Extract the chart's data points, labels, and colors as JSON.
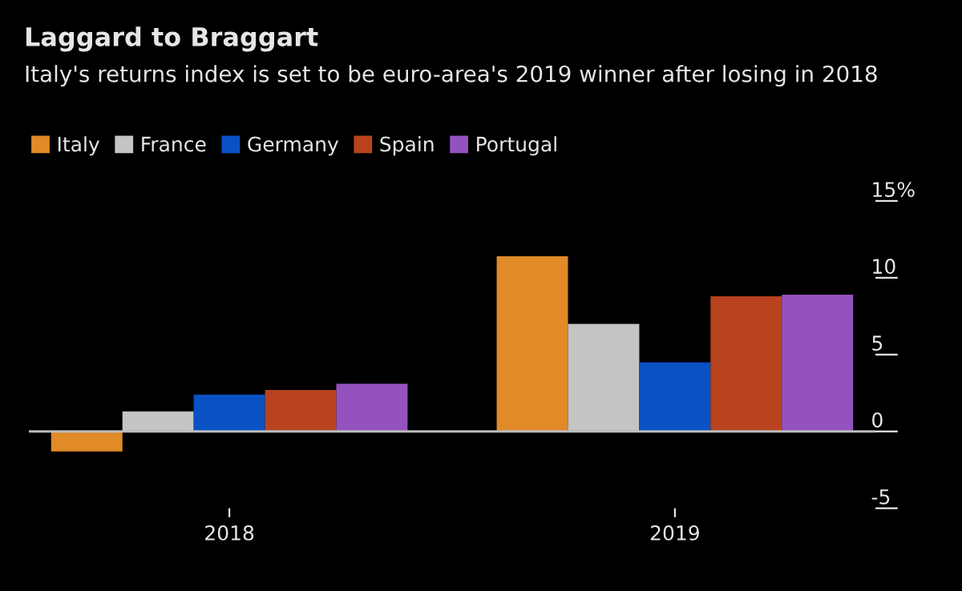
{
  "chart_data": {
    "type": "bar",
    "title": "Laggard to Braggart",
    "subtitle": "Italy's returns index is set to be euro-area's 2019 winner after losing in 2018",
    "categories": [
      "2018",
      "2019"
    ],
    "series": [
      {
        "name": "Italy",
        "color": "#e08a28",
        "values": [
          -1.3,
          11.4
        ]
      },
      {
        "name": "France",
        "color": "#c4c4c4",
        "values": [
          1.3,
          7.0
        ]
      },
      {
        "name": "Germany",
        "color": "#0a52c4",
        "values": [
          2.4,
          4.5
        ]
      },
      {
        "name": "Spain",
        "color": "#b8431e",
        "values": [
          2.7,
          8.8
        ]
      },
      {
        "name": "Portugal",
        "color": "#9452be",
        "values": [
          3.1,
          8.9
        ]
      }
    ],
    "ylim": [
      -5,
      15
    ],
    "yticks": [
      {
        "value": -5,
        "label": "-5"
      },
      0,
      5,
      10,
      {
        "value": 15,
        "label": "15%"
      }
    ],
    "ref_lines": [
      {
        "axis": "y",
        "value": 0,
        "color": "#bbbbbb"
      }
    ],
    "grid": false,
    "legend": "top left"
  }
}
